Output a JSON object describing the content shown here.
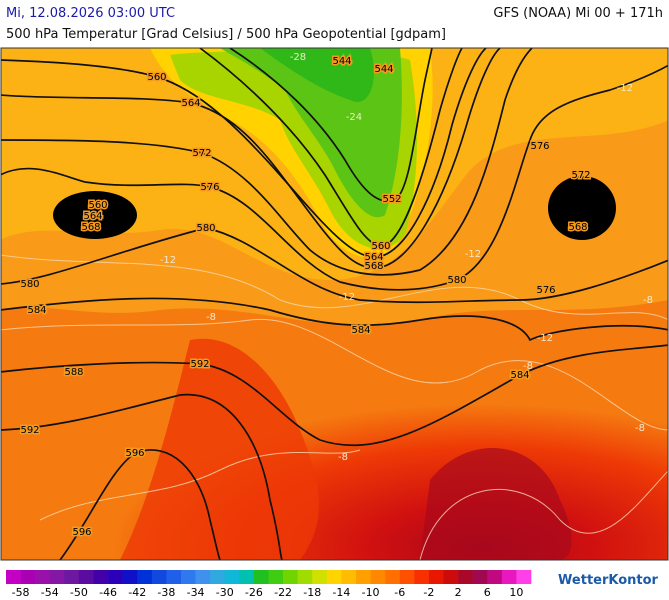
{
  "header": {
    "date": "Mi, 12.08.2026 03:00 UTC",
    "model": "GFS (NOAA) Mi 00 + 171h",
    "subtitle": "500 hPa Temperatur [Grad Celsius] / 500 hPa Geopotential [gdpam]"
  },
  "map": {
    "geopotential_labels": [
      560,
      544,
      544,
      564,
      572,
      576,
      560,
      564,
      568,
      580,
      552,
      560,
      564,
      568,
      580,
      584,
      580,
      576,
      576,
      572,
      568,
      584,
      588,
      592,
      584,
      592,
      596,
      596
    ],
    "temperature_labels": [
      -28,
      -24,
      -12,
      -12,
      -12,
      -12,
      -8,
      -8,
      -8,
      -8,
      -8,
      -12
    ]
  },
  "legend": {
    "labels": [
      -58,
      -54,
      -50,
      -46,
      -42,
      -38,
      -34,
      -30,
      -26,
      -22,
      -18,
      -14,
      -10,
      -6,
      -2,
      2,
      6,
      10
    ],
    "colors": [
      "#c400c4",
      "#aa00b4",
      "#9a10aa",
      "#8418a4",
      "#6c18a0",
      "#5a0ca0",
      "#4400a8",
      "#2a00b8",
      "#1010c8",
      "#0030d8",
      "#1048e0",
      "#2060e8",
      "#3078ee",
      "#4090f0",
      "#30a8e0",
      "#10b8d8",
      "#00c0b0",
      "#20c020",
      "#40cc10",
      "#70d400",
      "#a0dc00",
      "#d0e000",
      "#ffd400",
      "#ffbc00",
      "#ffa000",
      "#ff8800",
      "#ff7000",
      "#ff5000",
      "#f83000",
      "#e81800",
      "#cc0c0c",
      "#aa0828",
      "#a00850",
      "#c00880",
      "#e818c0",
      "#ff40e8"
    ],
    "brand": "WetterKontor"
  }
}
